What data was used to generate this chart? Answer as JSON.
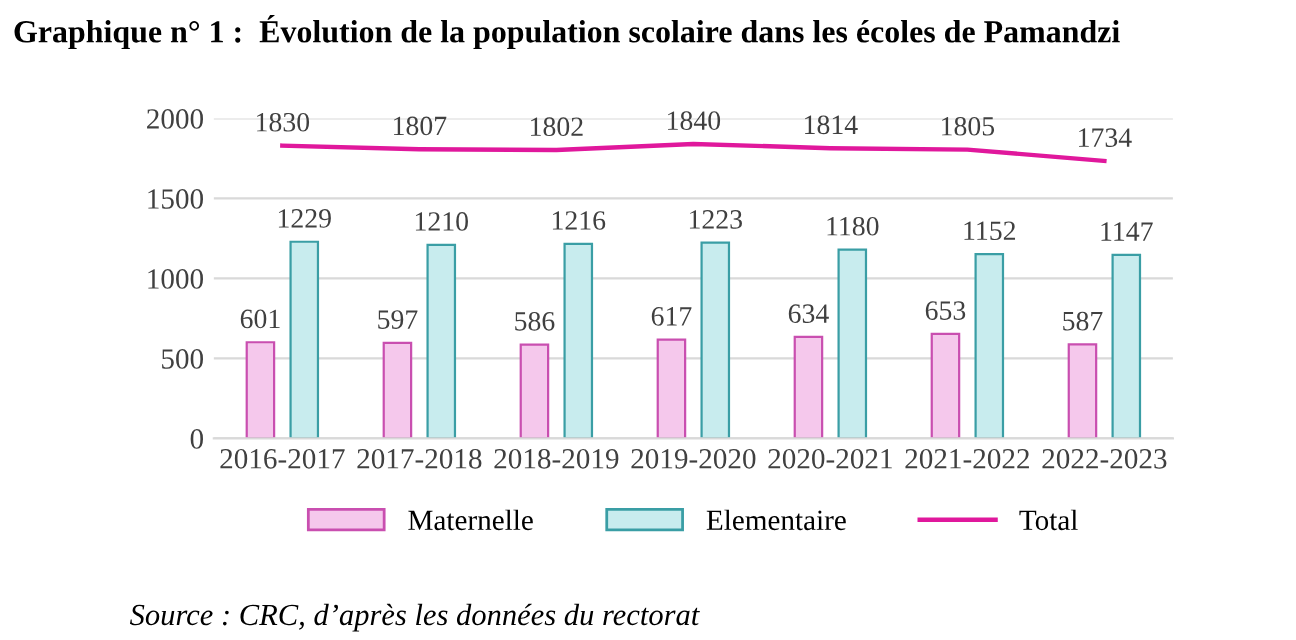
{
  "chart_data": {
    "type": "bar",
    "title": "Graphique n° 1 :  Évolution de la population scolaire dans les écoles de Pamandzi",
    "categories": [
      "2016-2017",
      "2017-2018",
      "2018-2019",
      "2019-2020",
      "2020-2021",
      "2021-2022",
      "2022-2023"
    ],
    "series": [
      {
        "name": "Maternelle",
        "color": "#f5c8ec",
        "values": [
          601,
          597,
          586,
          617,
          634,
          653,
          587
        ]
      },
      {
        "name": "Elementaire",
        "color": "#c8ecee",
        "values": [
          1229,
          1210,
          1216,
          1223,
          1180,
          1152,
          1147
        ]
      },
      {
        "name": "Total",
        "type": "line",
        "color": "#e0189c",
        "values": [
          1830,
          1807,
          1802,
          1840,
          1814,
          1805,
          1734
        ]
      }
    ],
    "ylim": [
      0,
      2000
    ],
    "yticks": [
      0,
      500,
      1000,
      1500,
      2000
    ],
    "grid": "y",
    "legend": "bottom",
    "data_labels": true,
    "marker": "none",
    "annotations": [
      "Source : CRC, d’après les données du rectorat"
    ]
  }
}
